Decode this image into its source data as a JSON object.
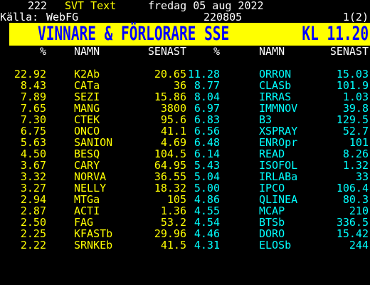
{
  "header": {
    "page_number": "222",
    "service": "SVT Text",
    "date": "fredag 05 aug 2022",
    "source_label": "Källa:",
    "source": "WebFG",
    "code": "220805",
    "page_index": "1(2)"
  },
  "title": {
    "left": "VINNARE & FÖRLORARE SSE",
    "right": "KL 11.20"
  },
  "columns": {
    "pct_left": "%",
    "name_left": "NAMN",
    "last_left": "SENAST",
    "pct_right": "%",
    "name_right": "NAMN",
    "last_right": "SENAST"
  },
  "rows": [
    {
      "lp": "22.92",
      "ln": "K2Ab",
      "ll": "20.65",
      "rp": "11.28",
      "rn": "ORRON",
      "rl": "15.03"
    },
    {
      "lp": "8.43",
      "ln": "CATa",
      "ll": "36",
      "rp": "8.77",
      "rn": "CLASb",
      "rl": "101.9"
    },
    {
      "lp": "7.89",
      "ln": "SEZI",
      "ll": "15.86",
      "rp": "8.04",
      "rn": "IRRAS",
      "rl": "1.03"
    },
    {
      "lp": "7.65",
      "ln": "MANG",
      "ll": "3800",
      "rp": "6.97",
      "rn": "IMMNOV",
      "rl": "39.8"
    },
    {
      "lp": "7.30",
      "ln": "CTEK",
      "ll": "95.6",
      "rp": "6.83",
      "rn": "B3",
      "rl": "129.5"
    },
    {
      "lp": "6.75",
      "ln": "ONCO",
      "ll": "41.1",
      "rp": "6.56",
      "rn": "XSPRAY",
      "rl": "52.7"
    },
    {
      "lp": "5.63",
      "ln": "SANION",
      "ll": "4.69",
      "rp": "6.48",
      "rn": "ENROpr",
      "rl": "101"
    },
    {
      "lp": "4.50",
      "ln": "BESQ",
      "ll": "104.5",
      "rp": "6.14",
      "rn": "READ",
      "rl": "8.26"
    },
    {
      "lp": "3.67",
      "ln": "CARY",
      "ll": "64.95",
      "rp": "5.43",
      "rn": "ISOFOL",
      "rl": "1.32"
    },
    {
      "lp": "3.32",
      "ln": "NORVA",
      "ll": "36.55",
      "rp": "5.04",
      "rn": "IRLABa",
      "rl": "33"
    },
    {
      "lp": "3.27",
      "ln": "NELLY",
      "ll": "18.32",
      "rp": "5.00",
      "rn": "IPCO",
      "rl": "106.4"
    },
    {
      "lp": "2.94",
      "ln": "MTGa",
      "ll": "105",
      "rp": "4.86",
      "rn": "QLINEA",
      "rl": "80.3"
    },
    {
      "lp": "2.87",
      "ln": "ACTI",
      "ll": "1.36",
      "rp": "4.55",
      "rn": "MCAP",
      "rl": "210"
    },
    {
      "lp": "2.50",
      "ln": "FAG",
      "ll": "53.2",
      "rp": "4.54",
      "rn": "BTSb",
      "rl": "336.5"
    },
    {
      "lp": "2.25",
      "ln": "KFASTb",
      "ll": "29.96",
      "rp": "4.46",
      "rn": "DORO",
      "rl": "15.42"
    },
    {
      "lp": "2.22",
      "ln": "SRNKEb",
      "ll": "41.5",
      "rp": "4.31",
      "rn": "ELOSb",
      "rl": "244"
    }
  ],
  "colors": {
    "background": "#000000",
    "white": "#ffffff",
    "yellow": "#ffff00",
    "cyan": "#00ffff",
    "blue": "#0000ff"
  }
}
